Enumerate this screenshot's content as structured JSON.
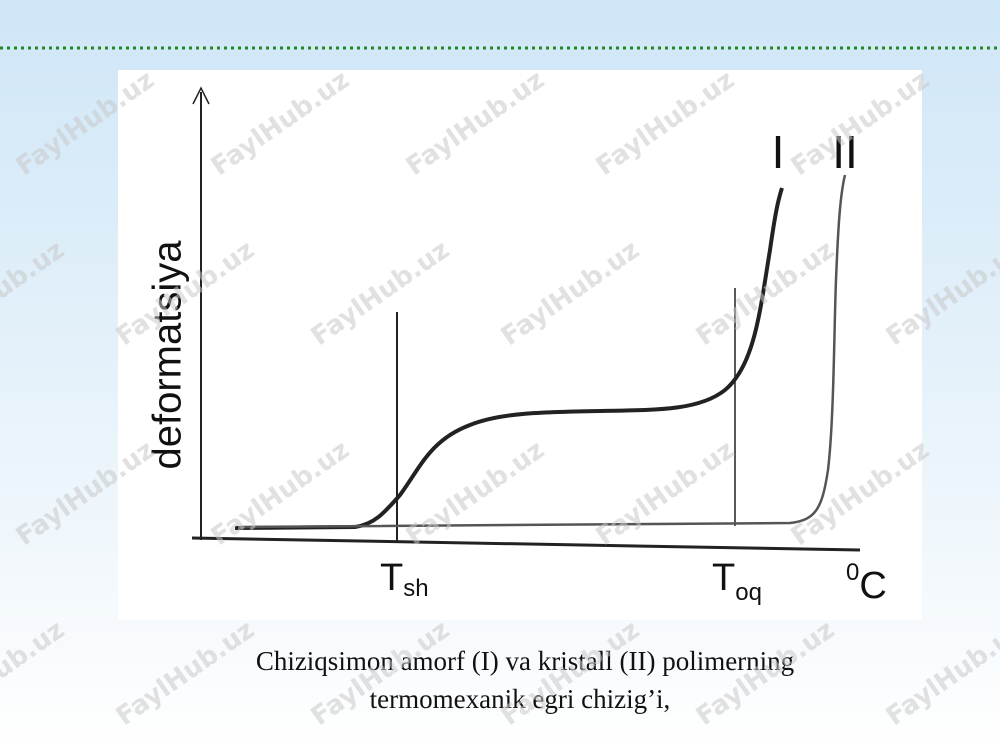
{
  "slide": {
    "caption": [
      "Chiziqsimon amorf (I) va kristall (II) polimerning",
      "termomexanik egri chizig’i,"
    ]
  },
  "diagram": {
    "y_axis_label": "deformatsiya",
    "x_axis_unit": {
      "superscript": "0",
      "text": "C"
    },
    "curve_labels": [
      "I",
      "II"
    ],
    "markers": [
      {
        "symbol": "T",
        "subscript": "sh"
      },
      {
        "symbol": "T",
        "subscript": "oq"
      }
    ]
  },
  "watermark": "FaylHub.uz"
}
